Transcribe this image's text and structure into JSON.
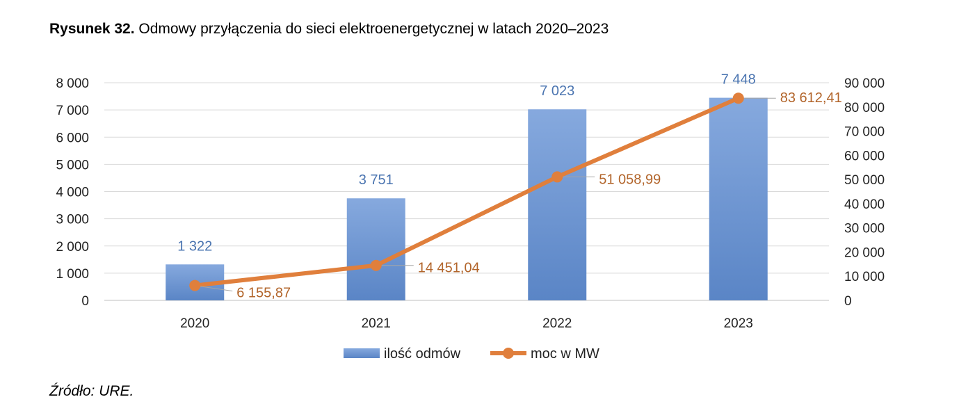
{
  "caption": {
    "prefix": "Rysunek 32.",
    "text": " Odmowy przyłączenia do sieci elektroenergetycznej w latach 2020–2023"
  },
  "source": "Źródło: URE.",
  "chart_data": {
    "type": "bar",
    "categories": [
      "2020",
      "2021",
      "2022",
      "2023"
    ],
    "series": [
      {
        "name": "ilość odmów",
        "type": "bar",
        "axis": "left",
        "values": [
          1322,
          3751,
          7023,
          7448
        ],
        "labels": [
          "1 322",
          "3 751",
          "7 023",
          "7 448"
        ],
        "color": "#6f97d1"
      },
      {
        "name": "moc w MW",
        "type": "line",
        "axis": "right",
        "values": [
          6155.87,
          14451.04,
          51058.99,
          83612.41
        ],
        "labels": [
          "6 155,87",
          "14 451,04",
          "51 058,99",
          "83 612,41"
        ],
        "color": "#e07f3c"
      }
    ],
    "y_left": {
      "range": [
        0,
        8000
      ],
      "ticks": [
        0,
        1000,
        2000,
        3000,
        4000,
        5000,
        6000,
        7000,
        8000
      ],
      "tick_labels": [
        "0",
        "1 000",
        "2 000",
        "3 000",
        "4 000",
        "5 000",
        "6 000",
        "7 000",
        "8 000"
      ]
    },
    "y_right": {
      "range": [
        0,
        90000
      ],
      "ticks": [
        0,
        10000,
        20000,
        30000,
        40000,
        50000,
        60000,
        70000,
        80000,
        90000
      ],
      "tick_labels": [
        "0",
        "10 000",
        "20 000",
        "30 000",
        "40 000",
        "50 000",
        "60 000",
        "70 000",
        "80 000",
        "90 000"
      ]
    },
    "grid": true,
    "legend": "bottom"
  }
}
